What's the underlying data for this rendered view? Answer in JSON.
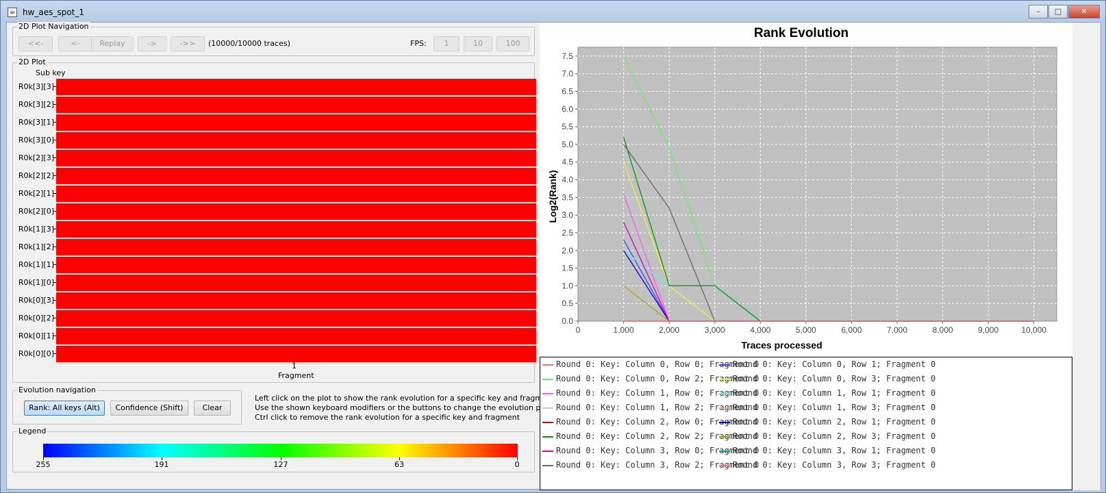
{
  "window": {
    "title": "hw_aes_spot_1",
    "minimize_glyph": "–",
    "maximize_glyph": "□",
    "close_glyph": "✕"
  },
  "nav": {
    "group_title": "2D Plot Navigation",
    "buttons": [
      "<<-",
      "<-",
      "Replay",
      "->",
      "->>"
    ],
    "trace_status": "(10000/10000 traces)",
    "fps_label": "FPS:",
    "fps_buttons": [
      "1",
      "10",
      "100"
    ]
  },
  "plot2d": {
    "group_title": "2D Plot",
    "y_header": "Sub key",
    "rows": [
      "R0k[3][3]",
      "R0k[3][2]",
      "R0k[3][1]",
      "R0k[3][0]",
      "R0k[2][3]",
      "R0k[2][2]",
      "R0k[2][1]",
      "R0k[2][0]",
      "R0k[1][3]",
      "R0k[1][2]",
      "R0k[1][1]",
      "R0k[1][0]",
      "R0k[0][3]",
      "R0k[0][2]",
      "R0k[0][1]",
      "R0k[0][0]"
    ],
    "x_tick": "1",
    "x_label": "Fragment",
    "cell_color": "#ff0000"
  },
  "evolution": {
    "group_title": "Evolution navigation",
    "rank_button": "Rank: All keys (Alt)",
    "confidence_button": "Confidence (Shift)",
    "clear_button": "Clear",
    "help": [
      "Left click on the plot to show the rank evolution for a specific key and fragment",
      "Use the shown keyboard modifiers or the buttons to change the evolution plot style",
      "Ctrl click to remove the rank evolution for a specific key and fragment"
    ]
  },
  "legend": {
    "group_title": "Legend",
    "ticks": [
      "255",
      "191",
      "127",
      "63",
      "0"
    ]
  },
  "chart_data": {
    "type": "line",
    "title": "Rank Evolution",
    "xlabel": "Traces processed",
    "ylabel": "Log2(Rank)",
    "xlim": [
      0,
      10500
    ],
    "ylim": [
      0,
      7.75
    ],
    "x_ticks": [
      "0",
      "1,000",
      "2,000",
      "3,000",
      "4,000",
      "5,000",
      "6,000",
      "7,000",
      "8,000",
      "9,000",
      "10,000"
    ],
    "y_ticks": [
      "0.0",
      "0.5",
      "1.0",
      "1.5",
      "2.0",
      "2.5",
      "3.0",
      "3.5",
      "4.0",
      "4.5",
      "5.0",
      "5.5",
      "6.0",
      "6.5",
      "7.0",
      "7.5"
    ],
    "grid": true,
    "plot_background": "#c0c0c0",
    "series": [
      {
        "name": "Round 0: Key: Column 0, Row 0; Fragment 0",
        "color": "#ff6666",
        "points": [
          [
            1000,
            0
          ],
          [
            10000,
            0
          ]
        ]
      },
      {
        "name": "Round 0: Key: Column 0, Row 1; Fragment 0",
        "color": "#4444ff",
        "points": [
          [
            1000,
            2.3
          ],
          [
            2000,
            0
          ],
          [
            10000,
            0
          ]
        ]
      },
      {
        "name": "Round 0: Key: Column 0, Row 2; Fragment 0",
        "color": "#66ee66",
        "points": [
          [
            1000,
            7.5
          ],
          [
            2000,
            4.9
          ],
          [
            3000,
            1
          ],
          [
            4000,
            0
          ],
          [
            10000,
            0
          ]
        ]
      },
      {
        "name": "Round 0: Key: Column 0, Row 3; Fragment 0",
        "color": "#eeee44",
        "points": [
          [
            1000,
            4.5
          ],
          [
            2000,
            1
          ],
          [
            3000,
            0
          ],
          [
            10000,
            0
          ]
        ]
      },
      {
        "name": "Round 0: Key: Column 1, Row 0; Fragment 0",
        "color": "#ff55ff",
        "points": [
          [
            1000,
            3.6
          ],
          [
            2000,
            0
          ],
          [
            10000,
            0
          ]
        ]
      },
      {
        "name": "Round 0: Key: Column 1, Row 1; Fragment 0",
        "color": "#66eeee",
        "points": [
          [
            1000,
            2.0
          ],
          [
            2000,
            1
          ],
          [
            3000,
            1
          ],
          [
            4000,
            0
          ],
          [
            10000,
            0
          ]
        ]
      },
      {
        "name": "Round 0: Key: Column 1, Row 2; Fragment 0",
        "color": "#c8c8c8",
        "points": [
          [
            1000,
            1.0
          ],
          [
            2000,
            0
          ],
          [
            10000,
            0
          ]
        ]
      },
      {
        "name": "Round 0: Key: Column 1, Row 3; Fragment 0",
        "color": "#ff9999",
        "points": [
          [
            1000,
            0
          ],
          [
            10000,
            0
          ]
        ]
      },
      {
        "name": "Round 0: Key: Column 2, Row 0; Fragment 0",
        "color": "#cc0000",
        "points": [
          [
            1000,
            0
          ],
          [
            10000,
            0
          ]
        ]
      },
      {
        "name": "Round 0: Key: Column 2, Row 1; Fragment 0",
        "color": "#0000cc",
        "points": [
          [
            1000,
            2.0
          ],
          [
            2000,
            0
          ],
          [
            10000,
            0
          ]
        ]
      },
      {
        "name": "Round 0: Key: Column 2, Row 2; Fragment 0",
        "color": "#009900",
        "points": [
          [
            1000,
            5.2
          ],
          [
            2000,
            1
          ],
          [
            3000,
            1
          ],
          [
            4000,
            0
          ],
          [
            10000,
            0
          ]
        ]
      },
      {
        "name": "Round 0: Key: Column 2, Row 3; Fragment 0",
        "color": "#aaaa00",
        "points": [
          [
            1000,
            1.0
          ],
          [
            2000,
            0
          ],
          [
            10000,
            0
          ]
        ]
      },
      {
        "name": "Round 0: Key: Column 3, Row 0; Fragment 0",
        "color": "#cc00cc",
        "points": [
          [
            1000,
            2.8
          ],
          [
            2000,
            0
          ],
          [
            10000,
            0
          ]
        ]
      },
      {
        "name": "Round 0: Key: Column 3, Row 1; Fragment 0",
        "color": "#00aaaa",
        "points": [
          [
            1000,
            0
          ],
          [
            10000,
            0
          ]
        ]
      },
      {
        "name": "Round 0: Key: Column 3, Row 2; Fragment 0",
        "color": "#666666",
        "points": [
          [
            1000,
            5.0
          ],
          [
            2000,
            3.2
          ],
          [
            3000,
            0
          ],
          [
            10000,
            0
          ]
        ]
      },
      {
        "name": "Round 0: Key: Column 3, Row 3; Fragment 0",
        "color": "#ff7777",
        "points": [
          [
            1000,
            0
          ],
          [
            10000,
            0
          ]
        ]
      }
    ]
  }
}
